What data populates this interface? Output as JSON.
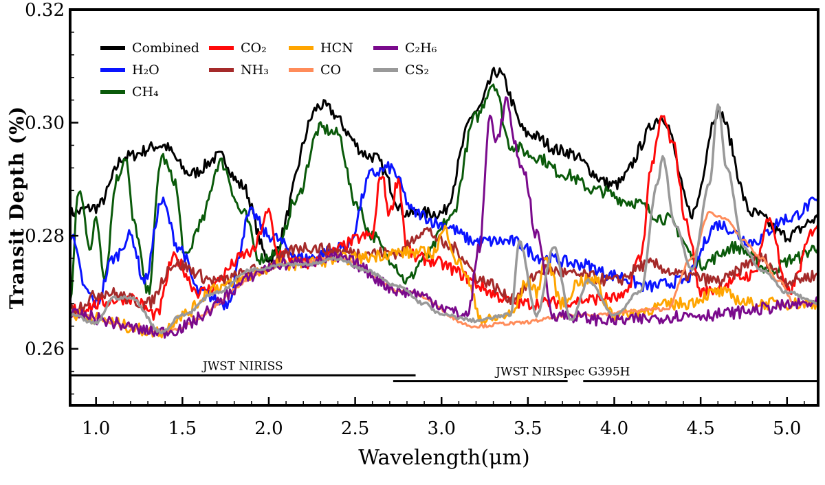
{
  "chart_data": {
    "type": "line",
    "xlabel": "Wavelength(μm)",
    "ylabel": "Transit Depth (%)",
    "xlim": [
      0.85,
      5.18
    ],
    "ylim": [
      0.25,
      0.32
    ],
    "xticks": [
      "1.0",
      "1.5",
      "2.0",
      "2.5",
      "3.0",
      "3.5",
      "4.0",
      "4.5",
      "5.0"
    ],
    "yticks": [
      "0.26",
      "0.28",
      "0.30",
      "0.32"
    ],
    "grid": false,
    "legend_position": "top-left",
    "series": [
      {
        "name": "Combined",
        "display": "Combined",
        "color": "#000000",
        "x": [
          0.85,
          1.0,
          1.17,
          1.38,
          1.55,
          1.72,
          1.84,
          2.0,
          2.3,
          2.6,
          2.8,
          3.0,
          3.2,
          3.32,
          3.5,
          3.7,
          4.0,
          4.28,
          4.45,
          4.6,
          4.8,
          5.0,
          5.18
        ],
        "y": [
          0.284,
          0.285,
          0.294,
          0.296,
          0.291,
          0.294,
          0.289,
          0.276,
          0.303,
          0.294,
          0.284,
          0.284,
          0.302,
          0.309,
          0.298,
          0.295,
          0.289,
          0.301,
          0.284,
          0.302,
          0.284,
          0.28,
          0.283
        ]
      },
      {
        "name": "H2O",
        "display": "H₂O",
        "color": "#0a14ff",
        "x": [
          0.85,
          0.95,
          1.0,
          1.1,
          1.2,
          1.28,
          1.38,
          1.48,
          1.6,
          1.75,
          1.9,
          2.0,
          2.2,
          2.45,
          2.6,
          2.7,
          2.85,
          3.0,
          3.2,
          3.4,
          3.6,
          3.8,
          4.0,
          4.2,
          4.4,
          4.6,
          4.8,
          5.0,
          5.18
        ],
        "y": [
          0.28,
          0.27,
          0.268,
          0.276,
          0.28,
          0.272,
          0.286,
          0.278,
          0.27,
          0.268,
          0.284,
          0.28,
          0.276,
          0.278,
          0.291,
          0.292,
          0.284,
          0.282,
          0.279,
          0.279,
          0.276,
          0.275,
          0.273,
          0.271,
          0.272,
          0.282,
          0.279,
          0.283,
          0.286
        ]
      },
      {
        "name": "CH4",
        "display": "CH₄",
        "color": "#0a5a0a",
        "x": [
          0.85,
          0.9,
          0.97,
          1.0,
          1.05,
          1.12,
          1.17,
          1.22,
          1.3,
          1.38,
          1.45,
          1.52,
          1.6,
          1.72,
          1.85,
          1.95,
          2.05,
          2.15,
          2.3,
          2.4,
          2.5,
          2.6,
          2.7,
          2.8,
          2.9,
          3.05,
          3.2,
          3.3,
          3.4,
          3.55,
          3.7,
          3.9,
          4.1,
          4.3,
          4.5,
          4.7,
          4.9,
          5.05,
          5.18
        ],
        "y": [
          0.269,
          0.288,
          0.278,
          0.283,
          0.273,
          0.29,
          0.294,
          0.282,
          0.27,
          0.294,
          0.29,
          0.276,
          0.282,
          0.293,
          0.284,
          0.276,
          0.277,
          0.286,
          0.299,
          0.298,
          0.286,
          0.28,
          0.276,
          0.272,
          0.276,
          0.283,
          0.301,
          0.307,
          0.296,
          0.294,
          0.291,
          0.288,
          0.286,
          0.283,
          0.275,
          0.278,
          0.274,
          0.276,
          0.278
        ]
      },
      {
        "name": "CO2",
        "display": "CO₂",
        "color": "#ff0a0a",
        "x": [
          0.85,
          1.2,
          1.35,
          1.45,
          1.6,
          1.9,
          2.0,
          2.05,
          2.2,
          2.6,
          2.65,
          2.7,
          2.75,
          2.8,
          2.85,
          3.5,
          4.05,
          4.15,
          4.22,
          4.28,
          4.34,
          4.42,
          4.5,
          4.8,
          4.9,
          5.0,
          5.18
        ],
        "y": [
          0.267,
          0.269,
          0.266,
          0.276,
          0.27,
          0.277,
          0.284,
          0.277,
          0.275,
          0.28,
          0.291,
          0.284,
          0.29,
          0.278,
          0.276,
          0.268,
          0.269,
          0.276,
          0.293,
          0.301,
          0.296,
          0.282,
          0.27,
          0.273,
          0.283,
          0.27,
          0.282
        ]
      },
      {
        "name": "NH3",
        "display": "NH₃",
        "color": "#a52a2a",
        "x": [
          0.85,
          1.05,
          1.3,
          1.45,
          1.7,
          1.95,
          2.2,
          2.5,
          2.75,
          2.9,
          3.05,
          3.25,
          3.4,
          3.6,
          3.8,
          4.0,
          4.2,
          4.4,
          4.6,
          4.85,
          5.0,
          5.18
        ],
        "y": [
          0.267,
          0.27,
          0.268,
          0.275,
          0.272,
          0.274,
          0.278,
          0.277,
          0.277,
          0.281,
          0.278,
          0.272,
          0.269,
          0.274,
          0.273,
          0.272,
          0.275,
          0.273,
          0.272,
          0.276,
          0.272,
          0.273
        ]
      },
      {
        "name": "HCN",
        "display": "HCN",
        "color": "#ffa500",
        "x": [
          0.85,
          1.38,
          1.5,
          1.7,
          2.1,
          2.5,
          2.75,
          2.95,
          3.02,
          3.1,
          3.25,
          3.4,
          3.5,
          3.55,
          3.6,
          3.7,
          3.8,
          3.9,
          3.95,
          4.0,
          4.4,
          4.6,
          4.8,
          5.18
        ],
        "y": [
          0.266,
          0.263,
          0.266,
          0.271,
          0.275,
          0.276,
          0.277,
          0.277,
          0.281,
          0.275,
          0.265,
          0.266,
          0.272,
          0.27,
          0.276,
          0.268,
          0.272,
          0.272,
          0.268,
          0.266,
          0.268,
          0.27,
          0.268,
          0.268
        ]
      },
      {
        "name": "CO",
        "display": "CO",
        "color": "#ff8c5a",
        "x": [
          0.85,
          1.38,
          2.1,
          2.4,
          2.8,
          3.2,
          3.4,
          3.8,
          4.3,
          4.45,
          4.55,
          4.65,
          4.75,
          4.85,
          4.95,
          5.05,
          5.18
        ],
        "y": [
          0.266,
          0.263,
          0.275,
          0.276,
          0.27,
          0.264,
          0.2645,
          0.266,
          0.267,
          0.276,
          0.284,
          0.283,
          0.279,
          0.276,
          0.272,
          0.268,
          0.268
        ]
      },
      {
        "name": "C2H6",
        "display": "C₂H₆",
        "color": "#7a0a8c",
        "x": [
          0.85,
          1.38,
          2.1,
          2.4,
          2.8,
          3.15,
          3.22,
          3.28,
          3.32,
          3.38,
          3.42,
          3.48,
          3.55,
          3.65,
          4.0,
          4.5,
          5.18
        ],
        "y": [
          0.266,
          0.263,
          0.275,
          0.276,
          0.27,
          0.266,
          0.278,
          0.301,
          0.297,
          0.304,
          0.296,
          0.291,
          0.28,
          0.266,
          0.265,
          0.266,
          0.268
        ]
      },
      {
        "name": "CS2",
        "display": "CS₂",
        "color": "#999999",
        "x": [
          0.85,
          1.0,
          1.1,
          1.2,
          1.38,
          1.5,
          1.7,
          1.9,
          2.1,
          2.25,
          2.4,
          2.55,
          2.75,
          2.9,
          3.0,
          3.2,
          3.4,
          3.45,
          3.55,
          3.65,
          3.75,
          3.85,
          4.0,
          4.15,
          4.25,
          4.28,
          4.35,
          4.45,
          4.55,
          4.6,
          4.65,
          4.75,
          4.85,
          5.0,
          5.18
        ],
        "y": [
          0.266,
          0.2645,
          0.269,
          0.269,
          0.263,
          0.266,
          0.27,
          0.274,
          0.275,
          0.275,
          0.276,
          0.274,
          0.271,
          0.268,
          0.266,
          0.265,
          0.266,
          0.279,
          0.266,
          0.278,
          0.265,
          0.272,
          0.266,
          0.27,
          0.289,
          0.294,
          0.282,
          0.274,
          0.289,
          0.303,
          0.292,
          0.278,
          0.274,
          0.27,
          0.268
        ]
      }
    ],
    "instruments": [
      {
        "label": "JWST NIRISS",
        "x_start": 0.85,
        "x_end": 2.85,
        "y": 0.2553
      },
      {
        "label": "JWST NIRSpec G395H",
        "x_start": 2.72,
        "x_end": 3.73,
        "y": 0.2543
      },
      {
        "label": "",
        "x_start": 3.82,
        "x_end": 5.18,
        "y": 0.2543
      }
    ]
  }
}
